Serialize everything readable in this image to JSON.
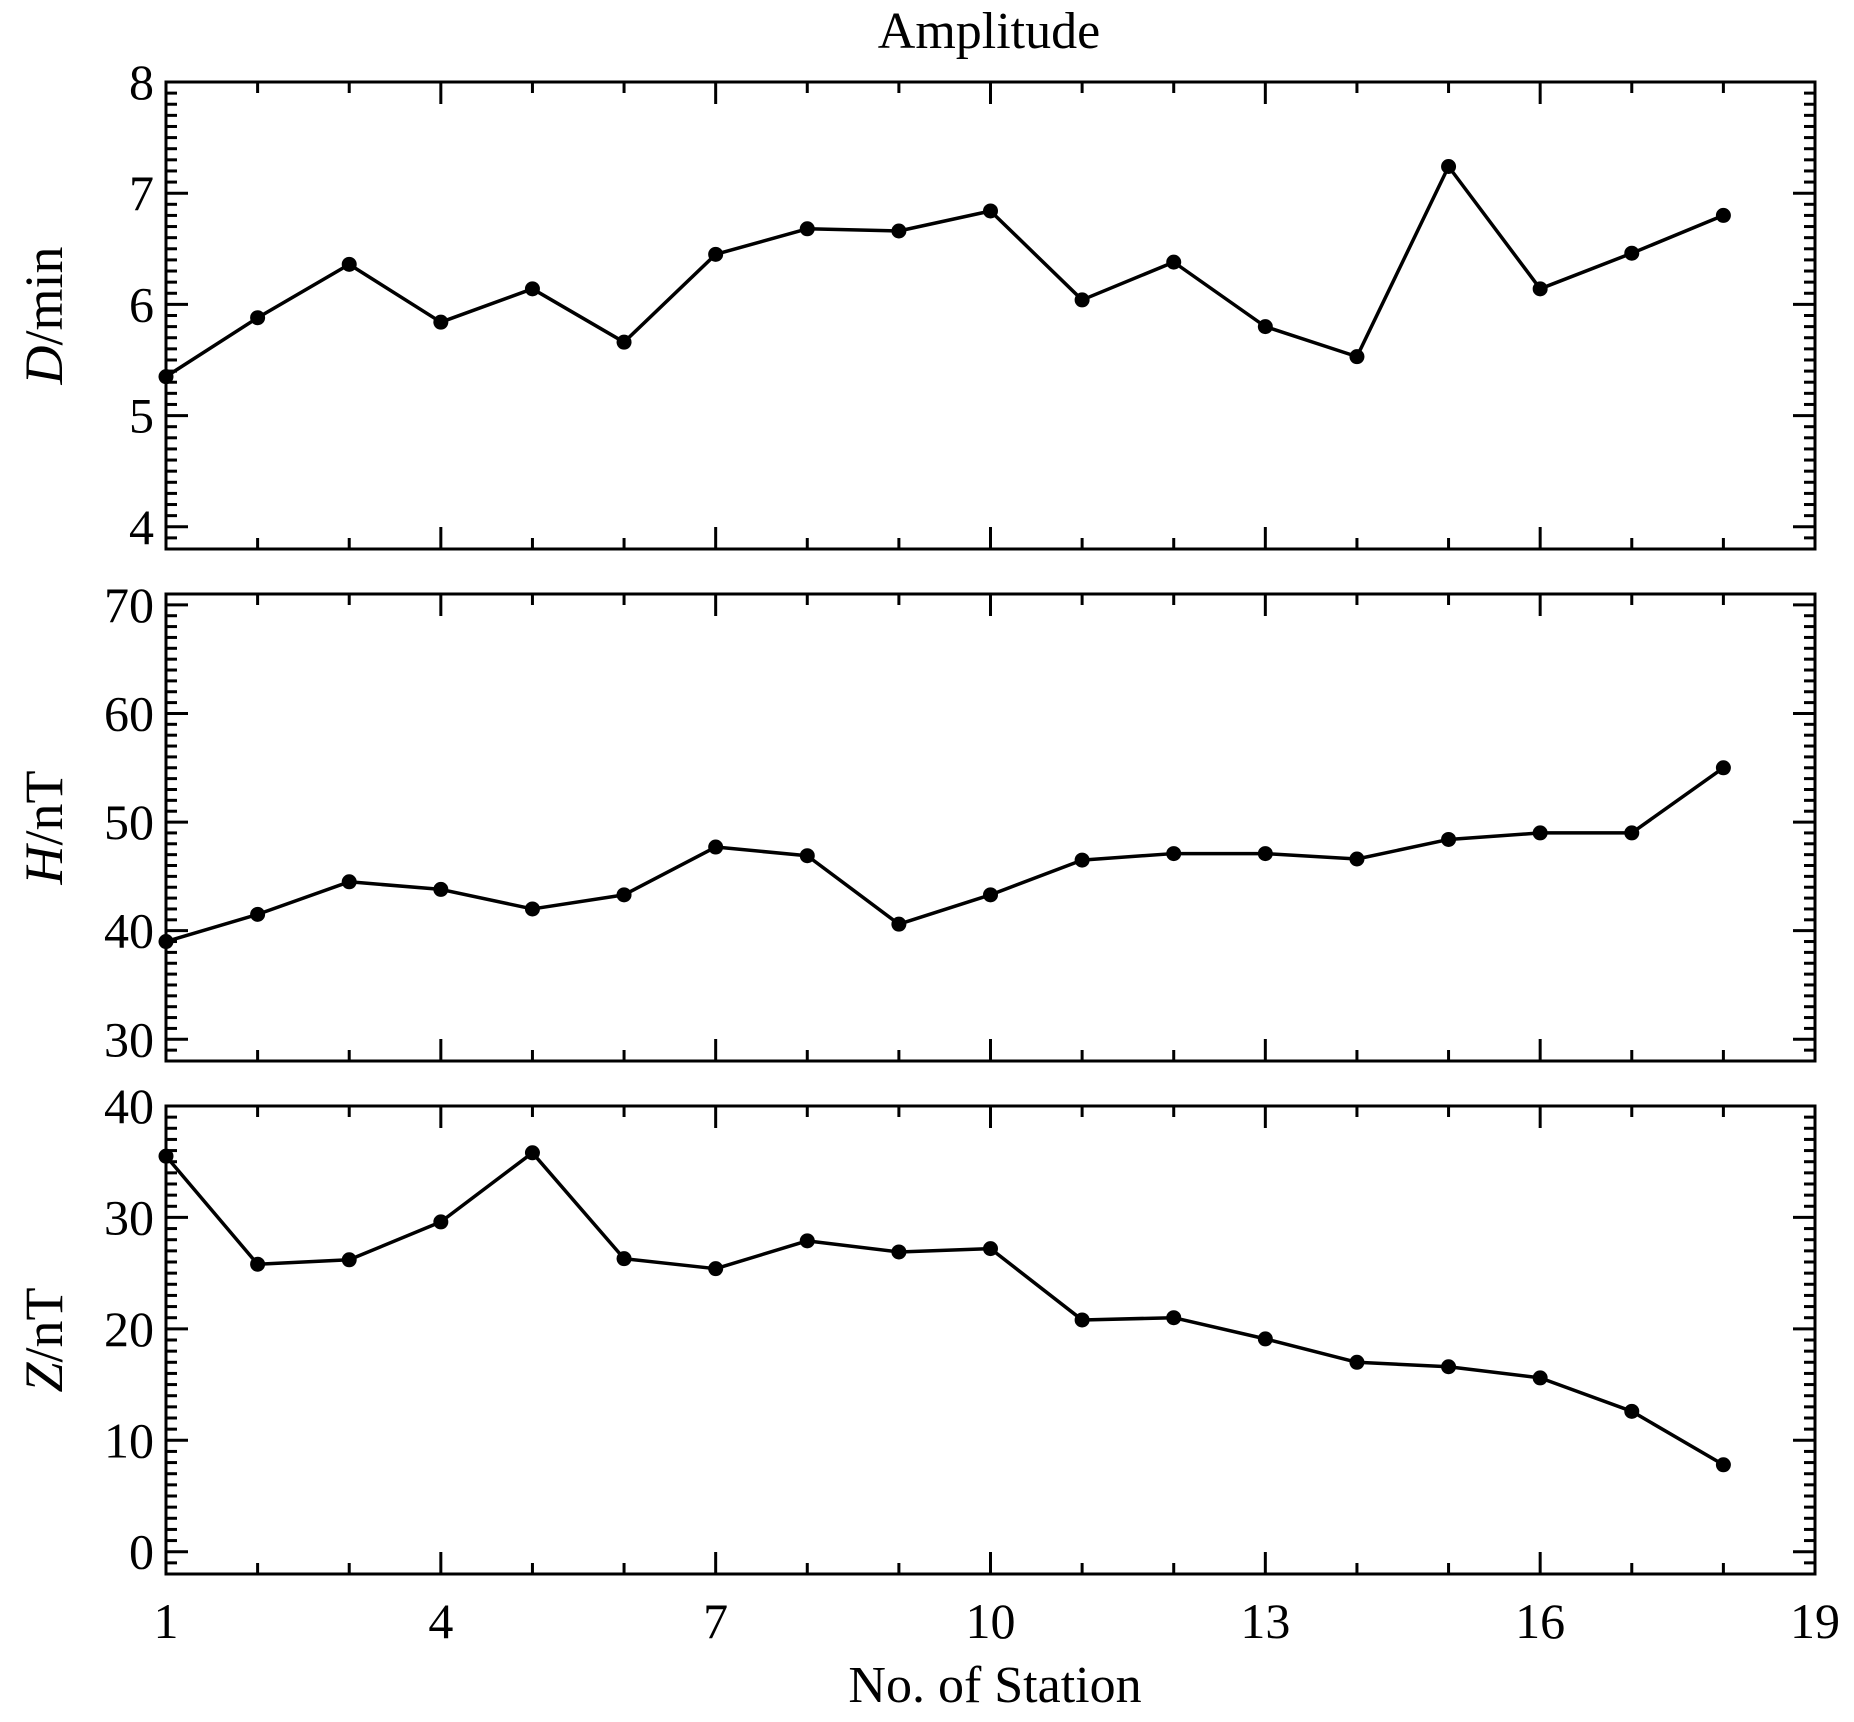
{
  "figure": {
    "title": "Amplitude",
    "xlabel": "No. of Station"
  },
  "chart_data": [
    {
      "type": "line",
      "title": "Amplitude",
      "ylabel_var": "D",
      "ylabel_unit": "/min",
      "xlabel": "No. of Station",
      "xlim": [
        1,
        19
      ],
      "ylim": [
        3.8,
        8
      ],
      "xticks": [
        1,
        4,
        7,
        10,
        13,
        16,
        19
      ],
      "yticks": [
        4,
        5,
        6,
        7,
        8
      ],
      "x": [
        1,
        2,
        3,
        4,
        5,
        6,
        7,
        8,
        9,
        10,
        11,
        12,
        13,
        14,
        15,
        16,
        17,
        18
      ],
      "series": [
        {
          "name": "D",
          "values": [
            5.35,
            5.88,
            6.36,
            5.84,
            6.14,
            5.66,
            6.45,
            6.68,
            6.66,
            6.84,
            6.04,
            6.38,
            5.8,
            5.53,
            7.24,
            6.14,
            6.46,
            6.8
          ]
        }
      ]
    },
    {
      "type": "line",
      "ylabel_var": "H",
      "ylabel_unit": "/nT",
      "xlabel": "No. of Station",
      "xlim": [
        1,
        19
      ],
      "ylim": [
        28,
        71
      ],
      "xticks": [
        1,
        4,
        7,
        10,
        13,
        16,
        19
      ],
      "yticks": [
        30,
        40,
        50,
        60,
        70
      ],
      "x": [
        1,
        2,
        3,
        4,
        5,
        6,
        7,
        8,
        9,
        10,
        11,
        12,
        13,
        14,
        15,
        16,
        17,
        18
      ],
      "series": [
        {
          "name": "H",
          "values": [
            39.0,
            41.5,
            44.5,
            43.8,
            42.0,
            43.3,
            47.7,
            46.9,
            40.6,
            43.3,
            46.5,
            47.1,
            47.1,
            46.6,
            48.4,
            49.0,
            49.0,
            55.0
          ]
        }
      ]
    },
    {
      "type": "line",
      "ylabel_var": "Z",
      "ylabel_unit": "/nT",
      "xlabel": "No. of Station",
      "xlim": [
        1,
        19
      ],
      "ylim": [
        -2,
        40
      ],
      "xticks": [
        1,
        4,
        7,
        10,
        13,
        16,
        19
      ],
      "yticks": [
        0,
        10,
        20,
        30,
        40
      ],
      "x": [
        1,
        2,
        3,
        4,
        5,
        6,
        7,
        8,
        9,
        10,
        11,
        12,
        13,
        14,
        15,
        16,
        17,
        18
      ],
      "series": [
        {
          "name": "Z",
          "values": [
            35.5,
            25.8,
            26.2,
            29.6,
            35.8,
            26.3,
            25.4,
            27.9,
            26.9,
            27.2,
            20.8,
            21.0,
            19.1,
            17.0,
            16.6,
            15.6,
            12.6,
            7.8
          ]
        }
      ]
    }
  ]
}
